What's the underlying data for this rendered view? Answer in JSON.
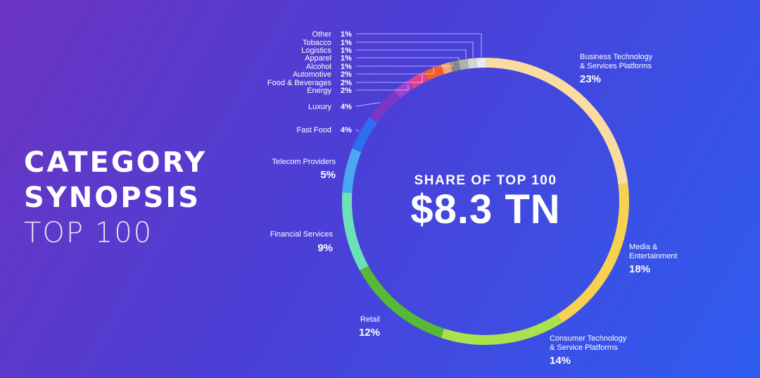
{
  "page": {
    "title_line1": "CATEGORY",
    "title_line2": "SYNOPSIS",
    "title_line3": "TOP 100"
  },
  "center": {
    "label": "SHARE OF TOP 100",
    "value": "$8.3 TN"
  },
  "chart_data": {
    "type": "pie",
    "title": "",
    "categories": [
      "Business Technology & Services Platforms",
      "Media & Entertainment",
      "Consumer Technology & Service Platforms",
      "Retail",
      "Financial Services",
      "Telecom Providers",
      "Fast Food",
      "Luxury",
      "Energy",
      "Food & Beverages",
      "Automotive",
      "Alcohol",
      "Apparel",
      "Logistics",
      "Tobacco",
      "Other"
    ],
    "values": [
      23,
      18,
      14,
      12,
      9,
      5,
      4,
      4,
      2,
      2,
      2,
      1,
      1,
      1,
      1,
      1
    ],
    "value_labels": [
      "23%",
      "18%",
      "14%",
      "12%",
      "9%",
      "5%",
      "4%",
      "4%",
      "2%",
      "2%",
      "2%",
      "1%",
      "1%",
      "1%",
      "1%",
      "1%"
    ],
    "colors": [
      "#fbdca0",
      "#f7d24e",
      "#a9e24d",
      "#58b838",
      "#6ee0b8",
      "#4aa8f0",
      "#2e6cf0",
      "#7a36c8",
      "#a23fd0",
      "#e43f8e",
      "#ef5e2e",
      "#f4a86e",
      "#858a84",
      "#b0b2ac",
      "#d4d6d0",
      "#e8eaf2"
    ],
    "style": "donut",
    "start": "top",
    "direction": "clockwise",
    "legend": "none"
  }
}
